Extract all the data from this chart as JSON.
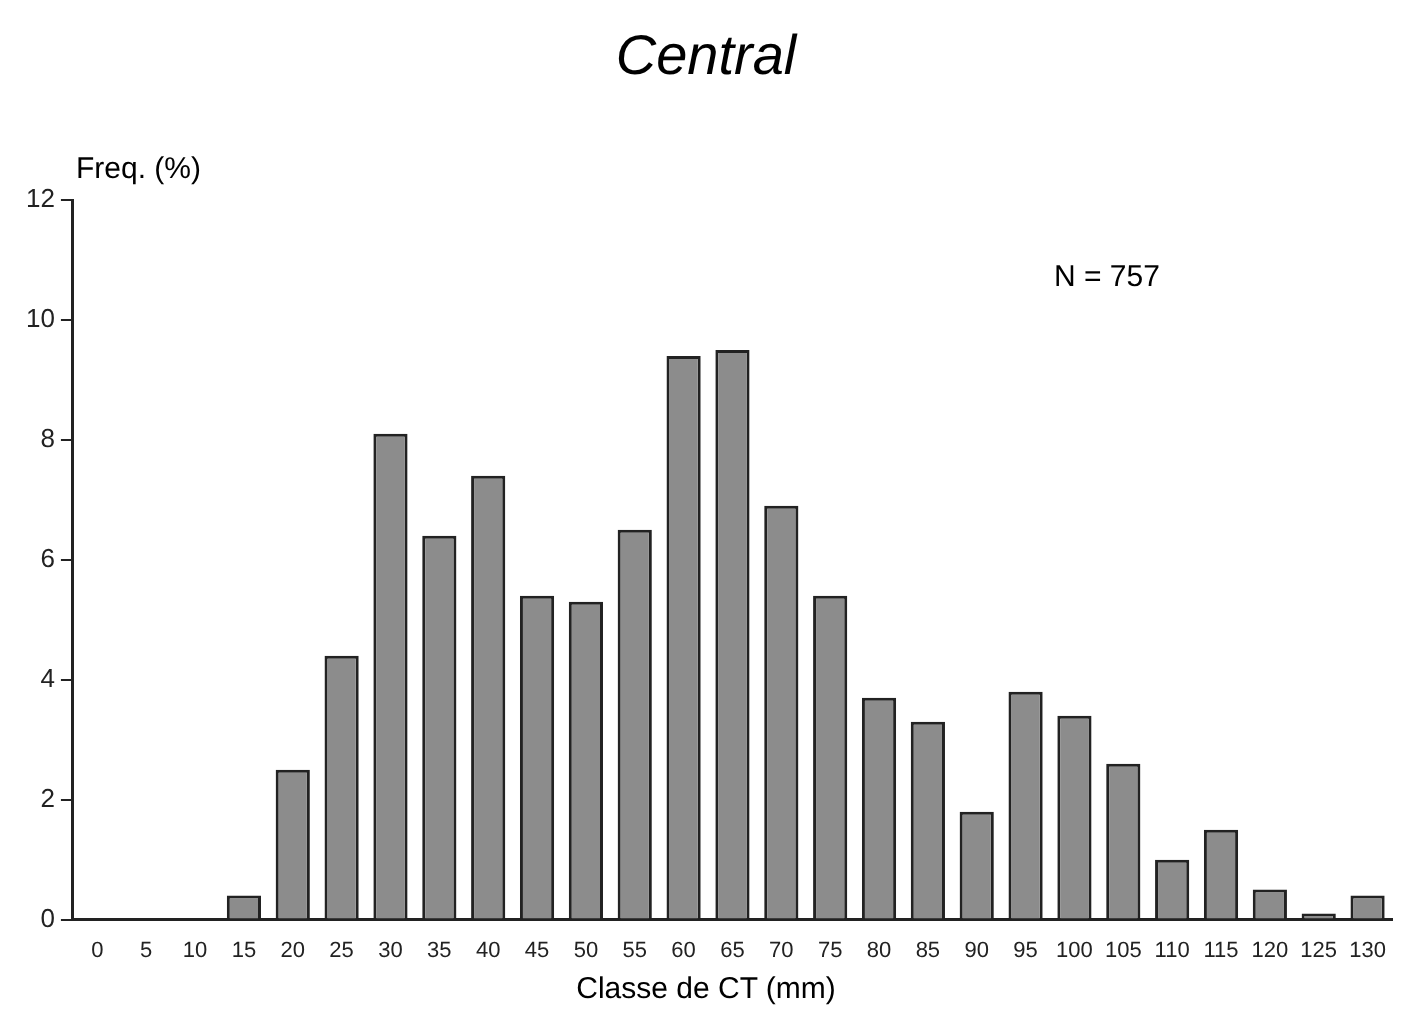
{
  "chart_data": {
    "type": "bar",
    "title": "Central",
    "xlabel": "Classe de CT (mm)",
    "ylabel": "Freq. (%)",
    "annotations": [
      "N = 757"
    ],
    "categories": [
      "0",
      "5",
      "10",
      "15",
      "20",
      "25",
      "30",
      "35",
      "40",
      "45",
      "50",
      "55",
      "60",
      "65",
      "70",
      "75",
      "80",
      "85",
      "90",
      "95",
      "100",
      "105",
      "110",
      "115",
      "120",
      "125",
      "130"
    ],
    "values": [
      0,
      0,
      0,
      0.4,
      2.5,
      4.4,
      8.1,
      6.4,
      7.4,
      5.4,
      5.3,
      6.5,
      9.4,
      9.5,
      6.9,
      5.4,
      3.7,
      3.3,
      1.8,
      3.8,
      3.4,
      2.6,
      1.0,
      1.5,
      0.5,
      0.1,
      0.4
    ],
    "color": "#8c8c8c",
    "ylim": [
      0,
      12
    ],
    "yticks": [
      0,
      2,
      4,
      6,
      8,
      10,
      12
    ],
    "grid": false,
    "legend": false
  }
}
